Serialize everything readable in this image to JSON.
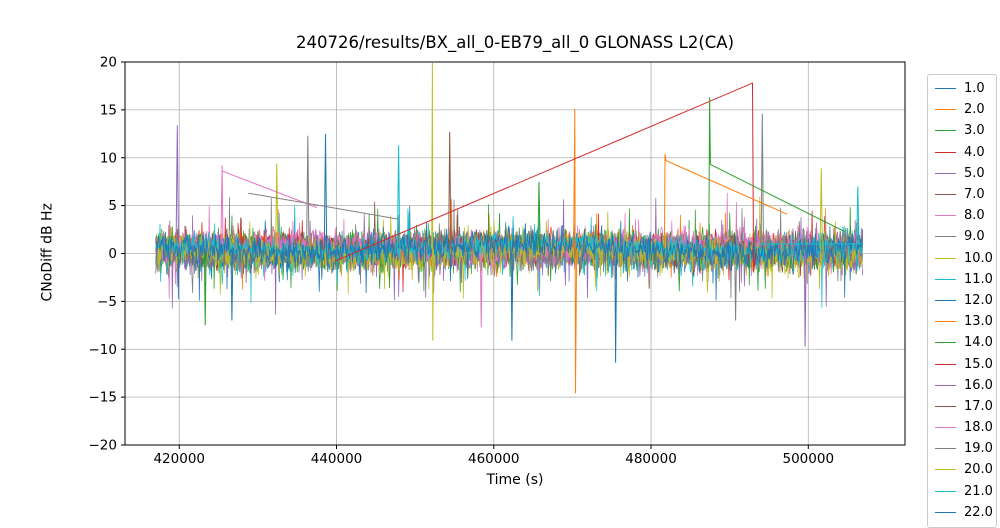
{
  "chart_data": {
    "type": "line",
    "title": "240726/results/BX_all_0-EB79_all_0 GLONASS L2(CA)",
    "xlabel": "Time (s)",
    "ylabel": "CNoDiff dB Hz",
    "xlim": [
      413100,
      512300
    ],
    "ylim": [
      -20,
      20
    ],
    "xticks": [
      420000,
      440000,
      460000,
      480000,
      500000
    ],
    "yticks": [
      -20,
      -15,
      -10,
      -5,
      0,
      5,
      10,
      15,
      20
    ],
    "grid": true,
    "grid_color": "#b0b0b0",
    "legend_position": "outside-right",
    "data_time_range": [
      417000,
      506900
    ],
    "noise_band": {
      "center": 0.4,
      "typical_span": [
        -3.5,
        4.5
      ]
    },
    "palette": [
      "#1f77b4",
      "#ff7f0e",
      "#2ca02c",
      "#d62728",
      "#9467bd",
      "#8c564b",
      "#e377c2",
      "#7f7f7f",
      "#bcbd22",
      "#17becf"
    ],
    "series": [
      {
        "label": "1.0",
        "color": "#1f77b4",
        "seed": 11,
        "ranges": [
          [
            417000,
            506900
          ]
        ]
      },
      {
        "label": "2.0",
        "color": "#ff7f0e",
        "seed": 22,
        "ranges": [
          [
            417000,
            481700
          ],
          [
            497300,
            506900
          ]
        ]
      },
      {
        "label": "3.0",
        "color": "#2ca02c",
        "seed": 33,
        "ranges": [
          [
            417000,
            487350
          ],
          [
            504600,
            506900
          ]
        ]
      },
      {
        "label": "4.0",
        "color": "#d62728",
        "seed": 44,
        "ranges": [
          [
            417000,
            439800
          ],
          [
            493200,
            494400
          ]
        ]
      },
      {
        "label": "5.0",
        "color": "#9467bd",
        "seed": 55,
        "ranges": [
          [
            417000,
            506900
          ]
        ]
      },
      {
        "label": "7.0",
        "color": "#8c564b",
        "seed": 77,
        "ranges": [
          [
            417000,
            506900
          ]
        ]
      },
      {
        "label": "8.0",
        "color": "#e377c2",
        "seed": 88,
        "ranges": [
          [
            417000,
            425400
          ],
          [
            437500,
            506900
          ]
        ]
      },
      {
        "label": "9.0",
        "color": "#7f7f7f",
        "seed": 99,
        "ranges": [
          [
            417000,
            506900
          ]
        ]
      },
      {
        "label": "10.0",
        "color": "#bcbd22",
        "seed": 110,
        "ranges": [
          [
            417000,
            506900
          ]
        ]
      },
      {
        "label": "11.0",
        "color": "#17becf",
        "seed": 121,
        "ranges": [
          [
            417000,
            506900
          ]
        ]
      },
      {
        "label": "12.0",
        "color": "#1f77b4",
        "seed": 132,
        "ranges": [
          [
            417000,
            506900
          ]
        ]
      },
      {
        "label": "13.0",
        "color": "#ff7f0e",
        "seed": 143,
        "ranges": [
          [
            417000,
            506900
          ]
        ]
      },
      {
        "label": "14.0",
        "color": "#2ca02c",
        "seed": 154,
        "ranges": [
          [
            417000,
            506900
          ]
        ]
      },
      {
        "label": "15.0",
        "color": "#d62728",
        "seed": 165,
        "ranges": [
          [
            417000,
            506900
          ]
        ]
      },
      {
        "label": "16.0",
        "color": "#9467bd",
        "seed": 176,
        "ranges": [
          [
            417000,
            506900
          ]
        ]
      },
      {
        "label": "17.0",
        "color": "#8c564b",
        "seed": 187,
        "ranges": [
          [
            417000,
            506900
          ]
        ]
      },
      {
        "label": "18.0",
        "color": "#e377c2",
        "seed": 198,
        "ranges": [
          [
            417000,
            506900
          ]
        ]
      },
      {
        "label": "19.0",
        "color": "#7f7f7f",
        "seed": 209,
        "ranges": [
          [
            417000,
            506900
          ]
        ]
      },
      {
        "label": "20.0",
        "color": "#bcbd22",
        "seed": 220,
        "ranges": [
          [
            417000,
            506900
          ]
        ]
      },
      {
        "label": "21.0",
        "color": "#17becf",
        "seed": 231,
        "ranges": [
          [
            417000,
            506900
          ]
        ]
      },
      {
        "label": "22.0",
        "color": "#1f77b4",
        "seed": 242,
        "ranges": [
          [
            417000,
            506900
          ]
        ]
      }
    ],
    "features": {
      "gap_lines": [
        {
          "series": "4.0",
          "color": "#d62728",
          "points": [
            [
              439800,
              -0.8
            ],
            [
              492900,
              17.8
            ],
            [
              493050,
              -2.0
            ],
            [
              493400,
              0.5
            ]
          ]
        },
        {
          "series": "2.0",
          "color": "#ff7f0e",
          "points": [
            [
              481700,
              0.5
            ],
            [
              481780,
              10.4
            ],
            [
              481900,
              9.7
            ],
            [
              497300,
              4.1
            ]
          ]
        },
        {
          "series": "3.0",
          "color": "#2ca02c",
          "points": [
            [
              487350,
              0.5
            ],
            [
              487450,
              16.3
            ],
            [
              487550,
              9.3
            ],
            [
              504600,
              2.3
            ]
          ]
        },
        {
          "series": "8.0",
          "color": "#e377c2",
          "points": [
            [
              425500,
              8.6
            ],
            [
              437500,
              4.8
            ]
          ]
        },
        {
          "series": "9.0",
          "color": "#7f7f7f",
          "points": [
            [
              428800,
              6.3
            ],
            [
              447800,
              3.6
            ]
          ]
        },
        {
          "series": "11.0",
          "color": "#17becf",
          "points": [
            [
              493800,
              1.0
            ],
            [
              506800,
              1.0
            ]
          ]
        }
      ],
      "spikes": [
        {
          "color": "#9467bd",
          "points": [
            [
              419600,
              1.0
            ],
            [
              419750,
              13.4
            ],
            [
              419900,
              0.5
            ]
          ]
        },
        {
          "color": "#2ca02c",
          "points": [
            [
              423200,
              0.0
            ],
            [
              423300,
              -7.5
            ],
            [
              423420,
              0.0
            ]
          ]
        },
        {
          "color": "#e377c2",
          "points": [
            [
              425300,
              1.0
            ],
            [
              425450,
              9.2
            ],
            [
              425560,
              1.0
            ]
          ]
        },
        {
          "color": "#1f77b4",
          "points": [
            [
              426600,
              0.0
            ],
            [
              426700,
              -7.0
            ],
            [
              426820,
              0.0
            ]
          ]
        },
        {
          "color": "#bcbd22",
          "points": [
            [
              432250,
              0.5
            ],
            [
              432400,
              9.4
            ],
            [
              432550,
              0.5
            ]
          ]
        },
        {
          "color": "#7f7f7f",
          "points": [
            [
              436200,
              0.5
            ],
            [
              436350,
              12.3
            ],
            [
              436500,
              0.5
            ]
          ]
        },
        {
          "color": "#1f77b4",
          "points": [
            [
              438450,
              0.5
            ],
            [
              438600,
              12.5
            ],
            [
              438750,
              0.5
            ]
          ]
        },
        {
          "color": "#17becf",
          "points": [
            [
              447750,
              0.5
            ],
            [
              447900,
              11.3
            ],
            [
              448050,
              0.5
            ]
          ]
        },
        {
          "color": "#bcbd22",
          "points": [
            [
              452100,
              0.5
            ],
            [
              452200,
              19.9
            ],
            [
              452240,
              -9.1
            ],
            [
              452340,
              0.5
            ]
          ]
        },
        {
          "color": "#8c564b",
          "points": [
            [
              454250,
              0.5
            ],
            [
              454400,
              12.7
            ],
            [
              454550,
              0.5
            ]
          ]
        },
        {
          "color": "#e377c2",
          "points": [
            [
              458300,
              0.0
            ],
            [
              458400,
              -7.7
            ],
            [
              458520,
              0.0
            ]
          ]
        },
        {
          "color": "#1f77b4",
          "points": [
            [
              462200,
              0.0
            ],
            [
              462300,
              -9.1
            ],
            [
              462420,
              0.0
            ]
          ]
        },
        {
          "color": "#2ca02c",
          "points": [
            [
              465600,
              0.5
            ],
            [
              465750,
              7.5
            ],
            [
              465900,
              0.5
            ]
          ]
        },
        {
          "color": "#ff7f0e",
          "points": [
            [
              470150,
              0.5
            ],
            [
              470300,
              15.1
            ],
            [
              470400,
              -14.6
            ],
            [
              470550,
              0.5
            ]
          ]
        },
        {
          "color": "#1f77b4",
          "points": [
            [
              475400,
              0.0
            ],
            [
              475500,
              -11.4
            ],
            [
              475620,
              0.0
            ]
          ]
        },
        {
          "color": "#7f7f7f",
          "points": [
            [
              490650,
              0.0
            ],
            [
              490750,
              -7.0
            ],
            [
              490870,
              0.0
            ]
          ]
        },
        {
          "color": "#7f7f7f",
          "points": [
            [
              494000,
              0.5
            ],
            [
              494150,
              14.6
            ],
            [
              494300,
              0.5
            ]
          ]
        },
        {
          "color": "#9467bd",
          "points": [
            [
              499500,
              0.0
            ],
            [
              499600,
              -9.7
            ],
            [
              499720,
              0.0
            ]
          ]
        },
        {
          "color": "#bcbd22",
          "points": [
            [
              501500,
              0.5
            ],
            [
              501650,
              8.9
            ],
            [
              501800,
              0.5
            ]
          ]
        },
        {
          "color": "#17becf",
          "points": [
            [
              506150,
              1.0
            ],
            [
              506300,
              7.0
            ],
            [
              506450,
              1.0
            ]
          ]
        }
      ]
    },
    "legend": {
      "entries": [
        {
          "label": "1.0",
          "color": "#1f77b4"
        },
        {
          "label": "2.0",
          "color": "#ff7f0e"
        },
        {
          "label": "3.0",
          "color": "#2ca02c"
        },
        {
          "label": "4.0",
          "color": "#d62728"
        },
        {
          "label": "5.0",
          "color": "#9467bd"
        },
        {
          "label": "7.0",
          "color": "#8c564b"
        },
        {
          "label": "8.0",
          "color": "#e377c2"
        },
        {
          "label": "9.0",
          "color": "#7f7f7f"
        },
        {
          "label": "10.0",
          "color": "#bcbd22"
        },
        {
          "label": "11.0",
          "color": "#17becf"
        },
        {
          "label": "12.0",
          "color": "#1f77b4"
        },
        {
          "label": "13.0",
          "color": "#ff7f0e"
        },
        {
          "label": "14.0",
          "color": "#2ca02c"
        },
        {
          "label": "15.0",
          "color": "#d62728"
        },
        {
          "label": "16.0",
          "color": "#9467bd"
        },
        {
          "label": "17.0",
          "color": "#8c564b"
        },
        {
          "label": "18.0",
          "color": "#e377c2"
        },
        {
          "label": "19.0",
          "color": "#7f7f7f"
        },
        {
          "label": "20.0",
          "color": "#bcbd22"
        },
        {
          "label": "21.0",
          "color": "#17becf"
        },
        {
          "label": "22.0",
          "color": "#1f77b4"
        }
      ],
      "last_entry_clipped": true
    }
  }
}
